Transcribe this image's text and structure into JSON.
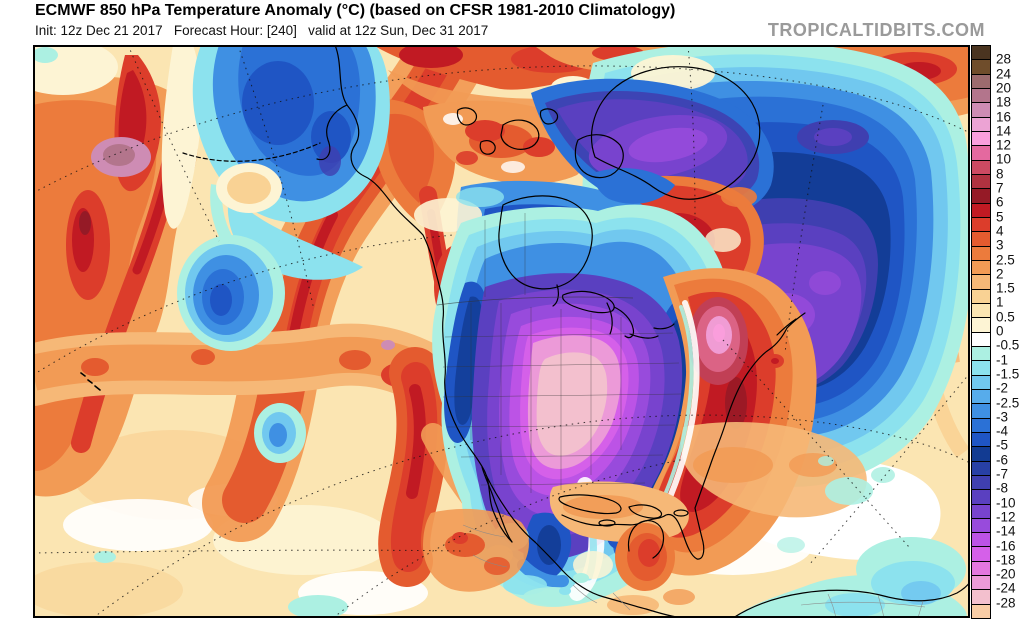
{
  "header": {
    "title": "ECMWF 850 hPa Temperature Anomaly (°C) (based on CFSR 1981-2010 Climatology)",
    "subtitle": "Init: 12z Dec 21 2017   Forecast Hour: [240]   valid at 12z Sun, Dec 31 2017",
    "watermark": "TROPICALTIDBITS.COM"
  },
  "map": {
    "variable": "850 hPa Temperature Anomaly",
    "unit": "°C",
    "region": "North America / Northern Hemisphere",
    "frame_color": "#000000"
  },
  "colorbar": {
    "unit": "°C",
    "stops": [
      {
        "color": "#4A3420",
        "label": "28"
      },
      {
        "color": "#6F4D2B",
        "label": "24"
      },
      {
        "color": "#9C6B6E",
        "label": "20"
      },
      {
        "color": "#B3758C",
        "label": "18"
      },
      {
        "color": "#CE8CB4",
        "label": "16"
      },
      {
        "color": "#ECA3D4",
        "label": "14"
      },
      {
        "color": "#FA9EDC",
        "label": "12"
      },
      {
        "color": "#E4699F",
        "label": "10"
      },
      {
        "color": "#CC4A62",
        "label": "8"
      },
      {
        "color": "#B03240",
        "label": "7"
      },
      {
        "color": "#951A26",
        "label": "6"
      },
      {
        "color": "#C11A23",
        "label": "5"
      },
      {
        "color": "#DC3D2B",
        "label": "4"
      },
      {
        "color": "#E45B2F",
        "label": "3"
      },
      {
        "color": "#EC7B3C",
        "label": "2.5"
      },
      {
        "color": "#F29B55",
        "label": "2"
      },
      {
        "color": "#F6B877",
        "label": "1.5"
      },
      {
        "color": "#F9D294",
        "label": "1"
      },
      {
        "color": "#FBE5B2",
        "label": "0.5"
      },
      {
        "color": "#FDF4D4",
        "label": "0"
      },
      {
        "color": "#FFFFFF",
        "label": "-0.5"
      },
      {
        "color": "#ACF0E2",
        "label": "-1"
      },
      {
        "color": "#8CE2EE",
        "label": "-1.5"
      },
      {
        "color": "#71C8EF",
        "label": "-2"
      },
      {
        "color": "#57ACEB",
        "label": "-2.5"
      },
      {
        "color": "#3F90E3",
        "label": "-3"
      },
      {
        "color": "#2B71D6",
        "label": "-4"
      },
      {
        "color": "#1F55C4",
        "label": "-5"
      },
      {
        "color": "#123B92",
        "label": "-6"
      },
      {
        "color": "#2840A5",
        "label": "-7"
      },
      {
        "color": "#3F3FB0",
        "label": "-8"
      },
      {
        "color": "#5A40C0",
        "label": "-10"
      },
      {
        "color": "#7843CE",
        "label": "-12"
      },
      {
        "color": "#984BDC",
        "label": "-14"
      },
      {
        "color": "#BC53E6",
        "label": "-16"
      },
      {
        "color": "#D560E9",
        "label": "-18"
      },
      {
        "color": "#E377DF",
        "label": "-20"
      },
      {
        "color": "#EC9AD8",
        "label": "-24"
      },
      {
        "color": "#F3C0CE",
        "label": "-28"
      },
      {
        "color": "#F9CDA6",
        "label": ""
      }
    ]
  }
}
